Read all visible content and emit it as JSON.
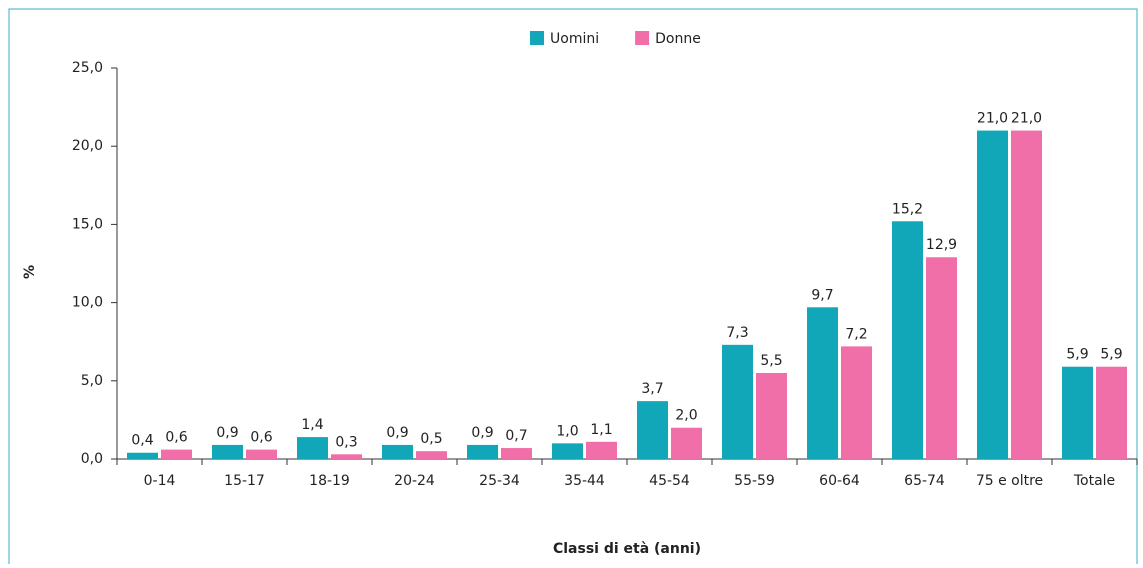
{
  "chart_data": {
    "type": "bar",
    "categories": [
      "0-14",
      "15-17",
      "18-19",
      "20-24",
      "25-34",
      "35-44",
      "45-54",
      "55-59",
      "60-64",
      "65-74",
      "75 e oltre",
      "Totale"
    ],
    "series": [
      {
        "name": "Uomini",
        "color": "#12a6b9",
        "values": [
          0.4,
          0.9,
          1.4,
          0.9,
          0.9,
          1.0,
          3.7,
          7.3,
          9.7,
          15.2,
          21.0,
          5.9
        ],
        "value_labels": [
          "0,4",
          "0,9",
          "1,4",
          "0,9",
          "0,9",
          "1,0",
          "3,7",
          "7,3",
          "9,7",
          "15,2",
          "21,0",
          "5,9"
        ]
      },
      {
        "name": "Donne",
        "color": "#f06fa8",
        "values": [
          0.6,
          0.6,
          0.3,
          0.5,
          0.7,
          1.1,
          2.0,
          5.5,
          7.2,
          12.9,
          21.0,
          5.9
        ],
        "value_labels": [
          "0,6",
          "0,6",
          "0,3",
          "0,5",
          "0,7",
          "1,1",
          "2,0",
          "5,5",
          "7,2",
          "12,9",
          "21,0",
          "5,9"
        ]
      }
    ],
    "y_label": "%",
    "x_label": "Classi di età (anni)",
    "ylim": [
      0,
      25
    ],
    "yticks": [
      {
        "value": 0,
        "label": "0,0"
      },
      {
        "value": 5,
        "label": "5,0"
      },
      {
        "value": 10,
        "label": "10,0"
      },
      {
        "value": 15,
        "label": "15,0"
      },
      {
        "value": 20,
        "label": "20,0"
      },
      {
        "value": 25,
        "label": "25,0"
      }
    ],
    "legend": "top"
  }
}
